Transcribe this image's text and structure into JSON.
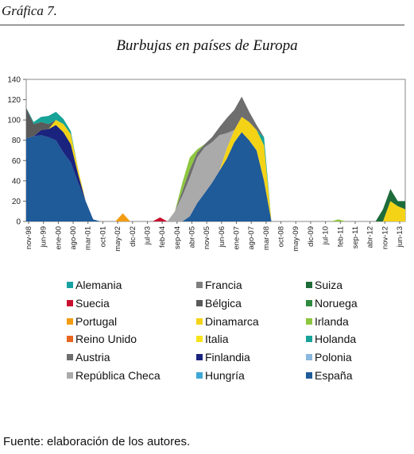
{
  "figure": {
    "caption": "Gráfica 7.",
    "title": "Burbujas en países de Europa",
    "source": "Fuente: elaboración de los autores."
  },
  "chart_data": {
    "type": "area",
    "stacked": true,
    "title": "Burbujas en países de Europa",
    "xlabel": "",
    "ylabel": "",
    "ylim": [
      0,
      140
    ],
    "yticks": [
      0,
      20,
      40,
      60,
      80,
      100,
      120,
      140
    ],
    "grid": false,
    "legend_position": "bottom",
    "xtick_labels": [
      "nov-98",
      "jun-99",
      "ene-00",
      "ago-00",
      "mar-01",
      "oct-01",
      "may-02",
      "dic-02",
      "jul-03",
      "feb-04",
      "sep-04",
      "abr-05",
      "nov-05",
      "jun-06",
      "ene-07",
      "ago-07",
      "mar-08",
      "oct-08",
      "may-09",
      "dic-09",
      "jul-10",
      "feb-11",
      "sep-11",
      "abr-12",
      "nov-12",
      "jun-13"
    ],
    "x": [
      "nov-98",
      "mar-99",
      "jun-99",
      "oct-99",
      "ene-00",
      "may-00",
      "ago-00",
      "dic-00",
      "mar-01",
      "jul-01",
      "oct-01",
      "feb-02",
      "may-02",
      "sep-02",
      "dic-02",
      "abr-03",
      "jul-03",
      "nov-03",
      "feb-04",
      "jun-04",
      "sep-04",
      "ene-05",
      "abr-05",
      "ago-05",
      "nov-05",
      "mar-06",
      "jun-06",
      "oct-06",
      "ene-07",
      "may-07",
      "ago-07",
      "dic-07",
      "mar-08",
      "jul-08",
      "oct-08",
      "feb-09",
      "may-09",
      "sep-09",
      "dic-09",
      "abr-10",
      "jul-10",
      "nov-10",
      "feb-11",
      "jun-11",
      "sep-11",
      "ene-12",
      "abr-12",
      "ago-12",
      "nov-12",
      "mar-13",
      "jun-13",
      "oct-13"
    ],
    "series": [
      {
        "name": "España",
        "color": "#1f5a99",
        "values": [
          82,
          84,
          85,
          83,
          80,
          68,
          58,
          38,
          20,
          2,
          0,
          0,
          0,
          0,
          0,
          0,
          0,
          0,
          0,
          0,
          0,
          0,
          5,
          18,
          28,
          38,
          50,
          62,
          78,
          88,
          80,
          70,
          40,
          0,
          0,
          0,
          0,
          0,
          0,
          0,
          0,
          0,
          0,
          0,
          0,
          0,
          0,
          0,
          0,
          0,
          0,
          0
        ]
      },
      {
        "name": "Finlandia",
        "color": "#1a237e",
        "values": [
          0,
          0,
          5,
          8,
          15,
          20,
          18,
          8,
          0,
          0,
          0,
          0,
          0,
          0,
          0,
          0,
          0,
          0,
          0,
          0,
          0,
          0,
          0,
          0,
          0,
          0,
          0,
          0,
          0,
          0,
          0,
          0,
          0,
          0,
          0,
          0,
          0,
          0,
          0,
          0,
          0,
          0,
          0,
          0,
          0,
          0,
          0,
          0,
          0,
          0,
          0,
          0
        ]
      },
      {
        "name": "Dinamarca",
        "color": "#f4d316",
        "values": [
          0,
          0,
          0,
          0,
          5,
          8,
          10,
          5,
          0,
          0,
          0,
          0,
          0,
          0,
          0,
          0,
          0,
          0,
          0,
          0,
          0,
          0,
          0,
          0,
          0,
          0,
          0,
          10,
          12,
          15,
          18,
          20,
          35,
          0,
          0,
          0,
          0,
          0,
          0,
          0,
          0,
          0,
          0,
          0,
          0,
          0,
          0,
          0,
          0,
          20,
          15,
          12
        ]
      },
      {
        "name": "Bélgica",
        "color": "#5a5a5a",
        "values": [
          30,
          12,
          8,
          5,
          0,
          0,
          0,
          0,
          0,
          0,
          0,
          0,
          0,
          0,
          0,
          0,
          0,
          0,
          0,
          0,
          0,
          0,
          0,
          0,
          0,
          0,
          0,
          0,
          0,
          0,
          0,
          0,
          0,
          0,
          0,
          0,
          0,
          0,
          0,
          0,
          0,
          0,
          0,
          0,
          0,
          0,
          0,
          0,
          0,
          0,
          0,
          0
        ]
      },
      {
        "name": "Holanda",
        "color": "#17a398",
        "values": [
          0,
          2,
          5,
          8,
          8,
          5,
          3,
          0,
          0,
          0,
          0,
          0,
          0,
          0,
          0,
          0,
          0,
          0,
          0,
          0,
          0,
          0,
          0,
          0,
          0,
          0,
          0,
          0,
          0,
          0,
          0,
          0,
          8,
          0,
          0,
          0,
          0,
          0,
          0,
          0,
          0,
          0,
          0,
          0,
          0,
          0,
          0,
          0,
          0,
          0,
          0,
          0
        ]
      },
      {
        "name": "República Checa",
        "color": "#aaaaaa",
        "values": [
          0,
          0,
          0,
          0,
          0,
          0,
          0,
          0,
          0,
          0,
          0,
          0,
          0,
          0,
          0,
          0,
          0,
          0,
          0,
          0,
          10,
          25,
          38,
          45,
          45,
          40,
          35,
          15,
          0,
          0,
          0,
          0,
          0,
          0,
          0,
          0,
          0,
          0,
          0,
          0,
          0,
          0,
          0,
          0,
          0,
          0,
          0,
          0,
          0,
          0,
          0,
          0
        ]
      },
      {
        "name": "Austria",
        "color": "#6e6e6e",
        "values": [
          0,
          0,
          0,
          0,
          0,
          0,
          0,
          0,
          0,
          0,
          0,
          0,
          0,
          0,
          0,
          0,
          0,
          0,
          0,
          0,
          0,
          5,
          8,
          5,
          3,
          5,
          8,
          15,
          20,
          20,
          10,
          5,
          0,
          0,
          0,
          0,
          0,
          0,
          0,
          0,
          0,
          0,
          0,
          0,
          0,
          0,
          0,
          0,
          0,
          0,
          0,
          0
        ]
      },
      {
        "name": "Irlanda",
        "color": "#8dc63f",
        "values": [
          0,
          0,
          0,
          0,
          0,
          0,
          0,
          0,
          0,
          0,
          0,
          0,
          0,
          0,
          0,
          0,
          0,
          0,
          0,
          0,
          0,
          8,
          12,
          3,
          0,
          0,
          0,
          0,
          0,
          0,
          0,
          0,
          0,
          0,
          0,
          0,
          0,
          0,
          0,
          0,
          0,
          0,
          2,
          0,
          0,
          0,
          0,
          0,
          0,
          0,
          0,
          0
        ]
      },
      {
        "name": "Suiza",
        "color": "#1e6b3a",
        "values": [
          0,
          0,
          0,
          0,
          0,
          0,
          0,
          0,
          0,
          0,
          0,
          0,
          0,
          0,
          0,
          0,
          0,
          0,
          0,
          0,
          0,
          0,
          0,
          0,
          0,
          0,
          0,
          0,
          0,
          0,
          0,
          0,
          0,
          0,
          0,
          0,
          0,
          0,
          0,
          0,
          0,
          0,
          0,
          0,
          0,
          0,
          0,
          0,
          12,
          12,
          5,
          8
        ]
      },
      {
        "name": "Portugal",
        "color": "#f39c12",
        "values": [
          0,
          0,
          0,
          0,
          0,
          0,
          0,
          0,
          0,
          0,
          0,
          0,
          0,
          8,
          0,
          0,
          0,
          0,
          0,
          0,
          0,
          0,
          0,
          0,
          0,
          0,
          0,
          0,
          0,
          0,
          0,
          0,
          0,
          0,
          0,
          0,
          0,
          0,
          0,
          0,
          0,
          0,
          0,
          0,
          0,
          0,
          0,
          0,
          0,
          0,
          0,
          0
        ]
      },
      {
        "name": "Suecia",
        "color": "#c8102e",
        "values": [
          0,
          0,
          0,
          0,
          0,
          0,
          0,
          0,
          0,
          0,
          0,
          0,
          0,
          0,
          0,
          0,
          0,
          0,
          4,
          0,
          0,
          0,
          0,
          0,
          0,
          0,
          0,
          0,
          0,
          0,
          0,
          0,
          0,
          0,
          0,
          0,
          0,
          0,
          0,
          0,
          0,
          0,
          0,
          0,
          0,
          0,
          0,
          0,
          0,
          0,
          0,
          0
        ]
      }
    ],
    "legend": [
      {
        "name": "Alemania",
        "color": "#17a2a2"
      },
      {
        "name": "Francia",
        "color": "#7f7f7f"
      },
      {
        "name": "Suiza",
        "color": "#1e6b3a"
      },
      {
        "name": "Suecia",
        "color": "#c8102e"
      },
      {
        "name": "Bélgica",
        "color": "#5a5a5a"
      },
      {
        "name": "Noruega",
        "color": "#2e8b3e"
      },
      {
        "name": "Portugal",
        "color": "#f39c12"
      },
      {
        "name": "Dinamarca",
        "color": "#f4d316"
      },
      {
        "name": "Irlanda",
        "color": "#8dc63f"
      },
      {
        "name": "Reino Unido",
        "color": "#e8661e"
      },
      {
        "name": "Italia",
        "color": "#f7e21b"
      },
      {
        "name": "Holanda",
        "color": "#17a398"
      },
      {
        "name": "Austria",
        "color": "#6e6e6e"
      },
      {
        "name": "Finlandia",
        "color": "#1a237e"
      },
      {
        "name": "Polonia",
        "color": "#8ab8de"
      },
      {
        "name": "República Checa",
        "color": "#aaaaaa"
      },
      {
        "name": "Hungría",
        "color": "#3fa7d6"
      },
      {
        "name": "España",
        "color": "#1f5a99"
      }
    ]
  }
}
